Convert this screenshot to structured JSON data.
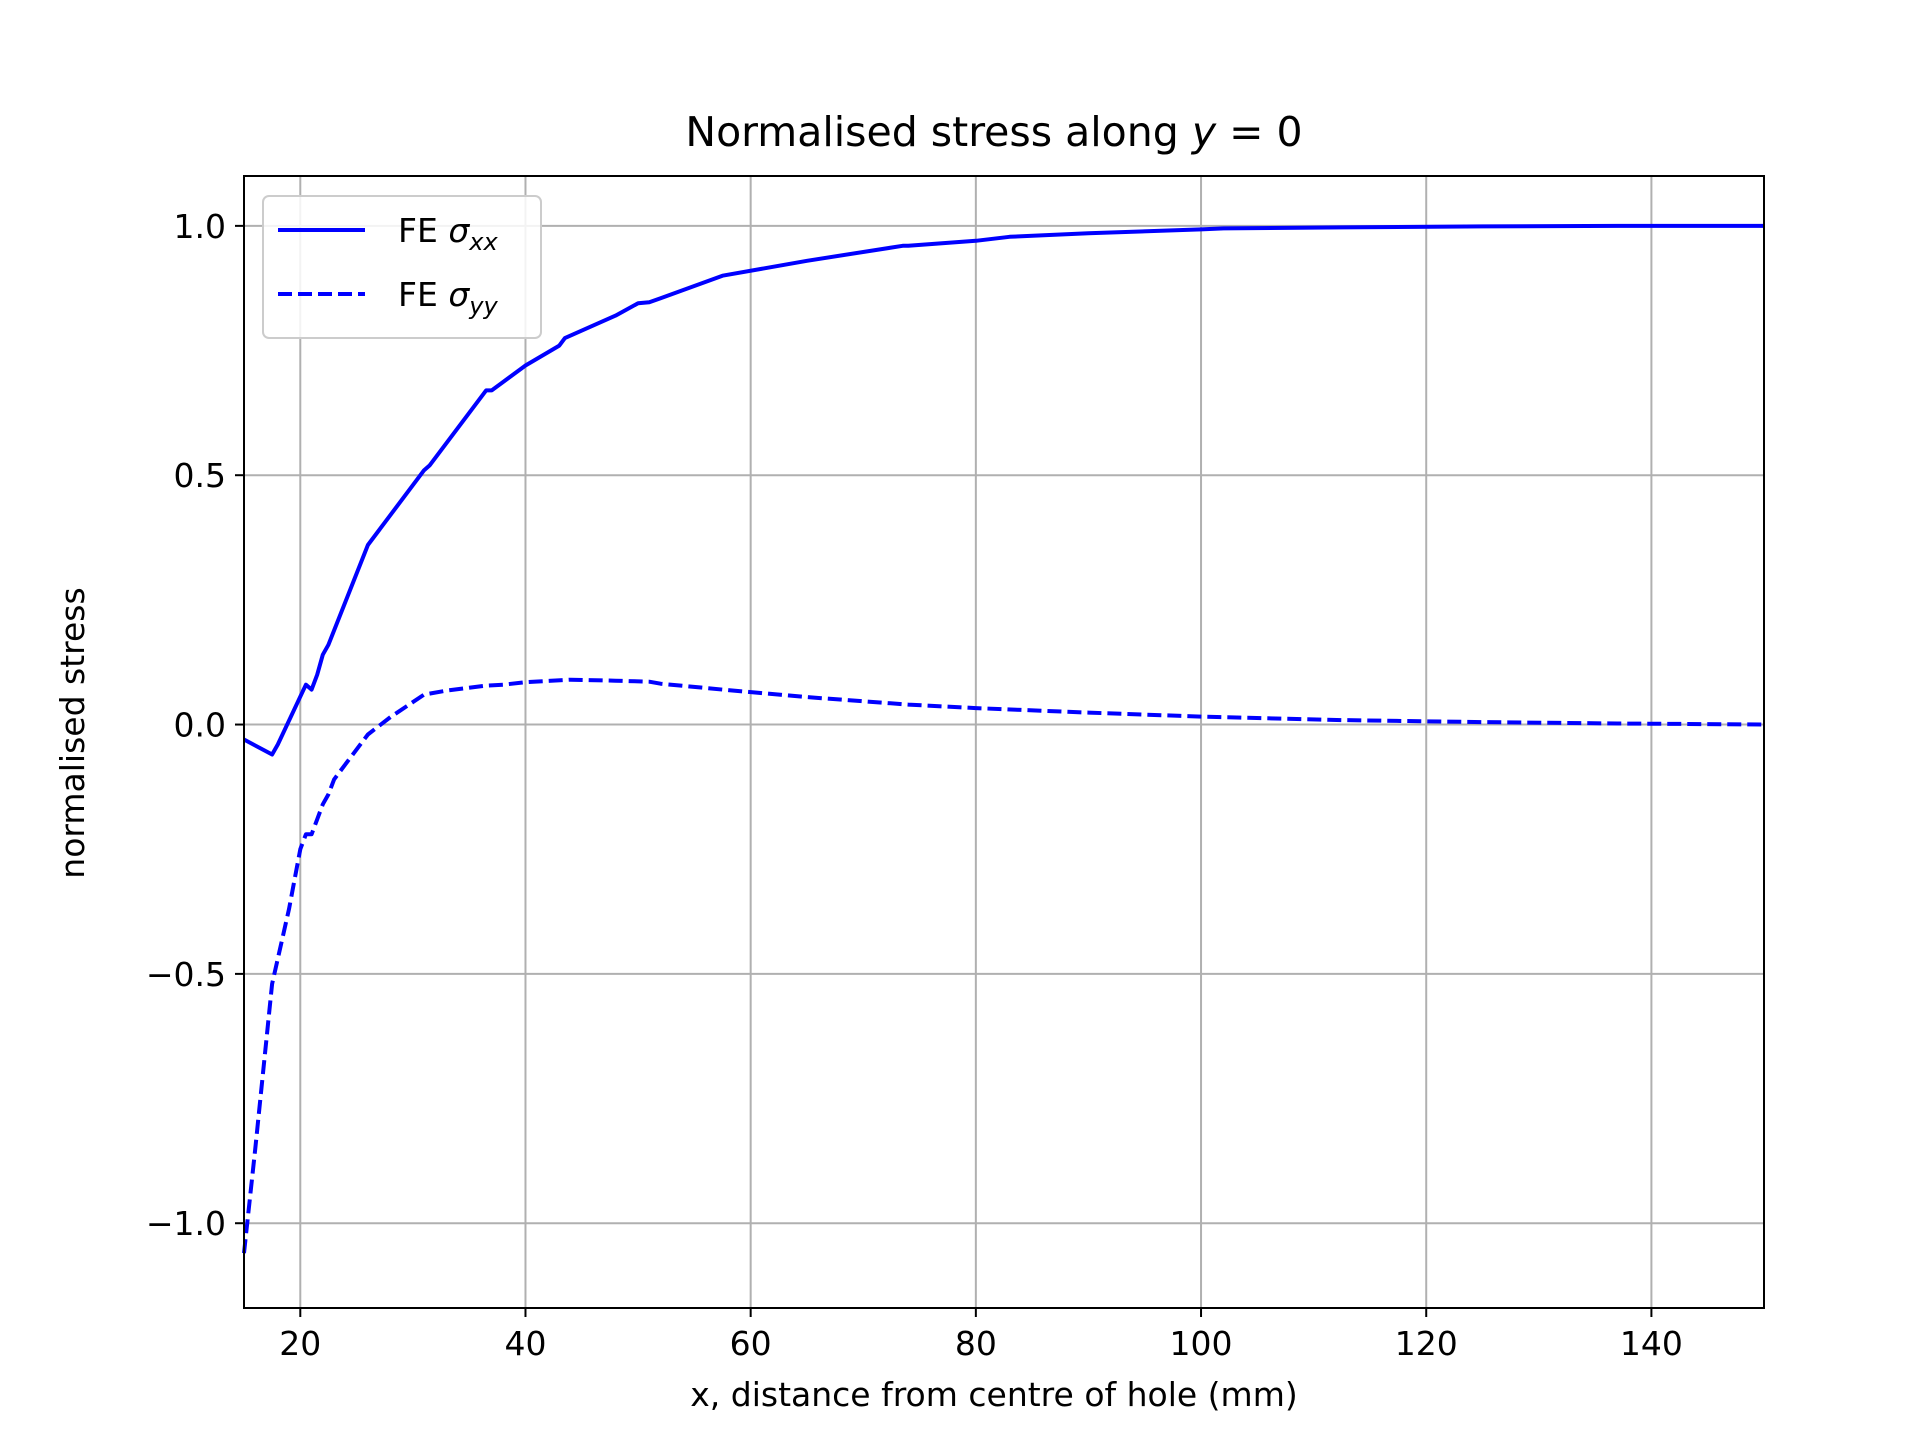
{
  "chart_data": {
    "type": "line",
    "title": "Normalised stress along y = 0",
    "title_parts": {
      "prefix": "Normalised stress along ",
      "var": "y",
      "suffix": " = 0"
    },
    "xlabel": "x, distance from centre of hole (mm)",
    "ylabel": "normalised stress",
    "xlim": [
      15,
      150
    ],
    "ylim": [
      -1.17,
      1.1
    ],
    "x_ticks": [
      20,
      40,
      60,
      80,
      100,
      120,
      140
    ],
    "x_tick_labels": [
      "20",
      "40",
      "60",
      "80",
      "100",
      "120",
      "140"
    ],
    "y_ticks": [
      -1.0,
      -0.5,
      0.0,
      0.5,
      1.0
    ],
    "y_tick_labels": [
      "−1.0",
      "−0.5",
      "0.0",
      "0.5",
      "1.0"
    ],
    "grid": true,
    "legend_position": "top-left",
    "color": "#0000ff",
    "series": [
      {
        "name": "FE σxx",
        "legend_prefix": "FE ",
        "legend_symbol": "σ",
        "legend_sub": "xx",
        "style": "solid",
        "x": [
          15,
          17.5,
          18,
          20.5,
          21,
          21.5,
          22,
          22.5,
          26,
          31,
          31.5,
          36.5,
          37,
          40,
          43,
          43.5,
          48,
          50,
          51,
          52,
          57.5,
          65,
          73.5,
          74,
          80,
          83,
          90,
          100,
          102,
          112.5,
          125,
          137,
          150
        ],
        "y": [
          -0.03,
          -0.06,
          -0.04,
          0.08,
          0.07,
          0.1,
          0.14,
          0.16,
          0.36,
          0.51,
          0.52,
          0.67,
          0.67,
          0.72,
          0.76,
          0.775,
          0.82,
          0.845,
          0.847,
          0.855,
          0.9,
          0.93,
          0.96,
          0.96,
          0.97,
          0.978,
          0.985,
          0.993,
          0.995,
          0.997,
          0.999,
          1.0,
          1.0
        ]
      },
      {
        "name": "FE σyy",
        "legend_prefix": "FE ",
        "legend_symbol": "σ",
        "legend_sub": "yy",
        "style": "dashed",
        "x": [
          15,
          16,
          17.5,
          19,
          20,
          20.5,
          21,
          21.5,
          22,
          22.5,
          23,
          24,
          26,
          28,
          30,
          31,
          33,
          36.5,
          38,
          40,
          44,
          48,
          51,
          52,
          57.5,
          65,
          74,
          80,
          90,
          100,
          112.5,
          125,
          137,
          150
        ],
        "y": [
          -1.06,
          -0.85,
          -0.52,
          -0.37,
          -0.25,
          -0.22,
          -0.22,
          -0.19,
          -0.16,
          -0.14,
          -0.11,
          -0.08,
          -0.02,
          0.015,
          0.045,
          0.06,
          0.068,
          0.078,
          0.08,
          0.085,
          0.09,
          0.088,
          0.086,
          0.082,
          0.07,
          0.055,
          0.04,
          0.033,
          0.024,
          0.016,
          0.009,
          0.005,
          0.002,
          0.0
        ]
      }
    ]
  }
}
